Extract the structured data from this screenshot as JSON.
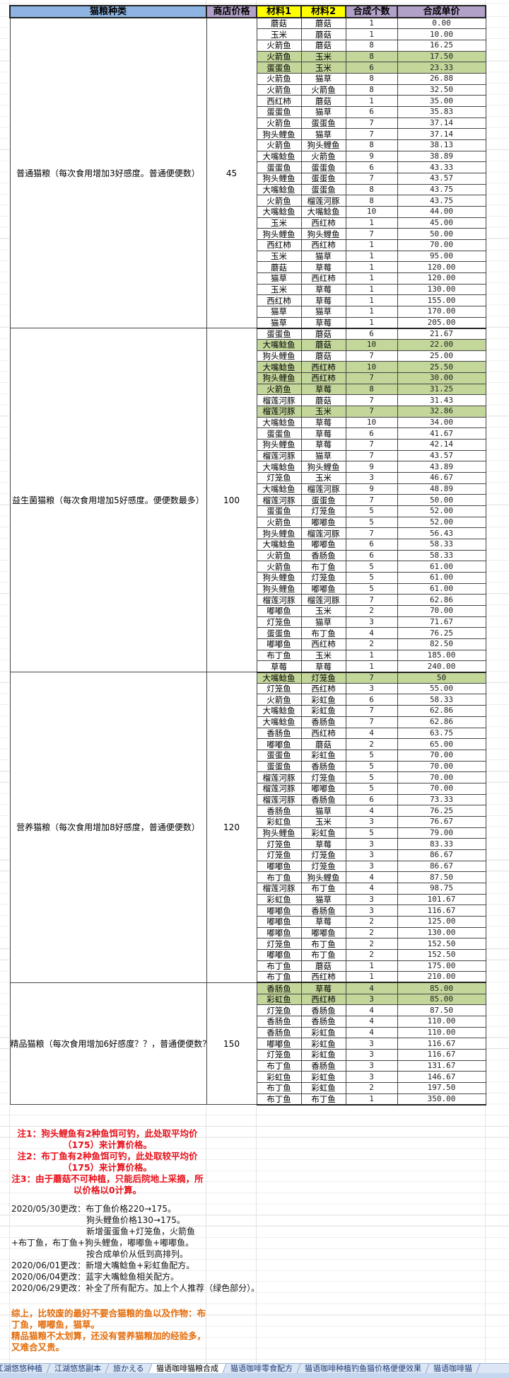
{
  "header": {
    "category": "猫粮种类",
    "shop_price": "商店价格",
    "mat1": "材料1",
    "mat2": "材料2",
    "count": "合成个数",
    "unit_price": "合成单价"
  },
  "colors": {
    "category_header": "#8db4e2",
    "purple_header": "#b1a0c7",
    "material_header": "#ffff00",
    "recommended": "#c4d79b",
    "note_red": "#e8101a",
    "summary_orange": "#e46c0a"
  },
  "sections": [
    {
      "name": "普通猫粮（每次食用增加3好感度。普通便便数）",
      "price": "45",
      "highlighted_rows": [
        3,
        4
      ],
      "rows": [
        [
          "蘑菇",
          "蘑菇",
          "1",
          "0.00"
        ],
        [
          "玉米",
          "蘑菇",
          "1",
          "10.00"
        ],
        [
          "火箭鱼",
          "蘑菇",
          "8",
          "16.25"
        ],
        [
          "火箭鱼",
          "玉米",
          "8",
          "17.50"
        ],
        [
          "蛋蛋鱼",
          "玉米",
          "6",
          "23.33"
        ],
        [
          "火箭鱼",
          "猫草",
          "8",
          "26.88"
        ],
        [
          "火箭鱼",
          "火箭鱼",
          "8",
          "32.50"
        ],
        [
          "西红柿",
          "蘑菇",
          "1",
          "35.00"
        ],
        [
          "蛋蛋鱼",
          "猫草",
          "6",
          "35.83"
        ],
        [
          "火箭鱼",
          "蛋蛋鱼",
          "7",
          "37.14"
        ],
        [
          "狗头鲤鱼",
          "猫草",
          "7",
          "37.14"
        ],
        [
          "火箭鱼",
          "狗头鲤鱼",
          "8",
          "38.13"
        ],
        [
          "大嘴鲶鱼",
          "火箭鱼",
          "9",
          "38.89"
        ],
        [
          "蛋蛋鱼",
          "蛋蛋鱼",
          "6",
          "43.33"
        ],
        [
          "狗头鲤鱼",
          "蛋蛋鱼",
          "7",
          "43.57"
        ],
        [
          "大嘴鲶鱼",
          "蛋蛋鱼",
          "8",
          "43.75"
        ],
        [
          "火箭鱼",
          "榴莲河豚",
          "8",
          "43.75"
        ],
        [
          "大嘴鲶鱼",
          "大嘴鲶鱼",
          "10",
          "44.00"
        ],
        [
          "玉米",
          "西红柿",
          "1",
          "45.00"
        ],
        [
          "狗头鲤鱼",
          "狗头鲤鱼",
          "7",
          "50.00"
        ],
        [
          "西红柿",
          "西红柿",
          "1",
          "70.00"
        ],
        [
          "玉米",
          "猫草",
          "1",
          "95.00"
        ],
        [
          "蘑菇",
          "草莓",
          "1",
          "120.00"
        ],
        [
          "猫草",
          "西红柿",
          "1",
          "120.00"
        ],
        [
          "玉米",
          "草莓",
          "1",
          "130.00"
        ],
        [
          "西红柿",
          "草莓",
          "1",
          "155.00"
        ],
        [
          "猫草",
          "猫草",
          "1",
          "170.00"
        ],
        [
          "猫草",
          "草莓",
          "1",
          "205.00"
        ]
      ]
    },
    {
      "name": "益生菌猫粮（每次食用增加5好感度。便便数最多）",
      "price": "100",
      "highlighted_rows": [
        1,
        3,
        4,
        5,
        7
      ],
      "rows": [
        [
          "蛋蛋鱼",
          "蘑菇",
          "6",
          "21.67"
        ],
        [
          "大嘴鲶鱼",
          "蘑菇",
          "10",
          "22.00"
        ],
        [
          "狗头鲤鱼",
          "蘑菇",
          "7",
          "25.00"
        ],
        [
          "大嘴鲶鱼",
          "西红柿",
          "10",
          "25.50"
        ],
        [
          "狗头鲤鱼",
          "西红柿",
          "7",
          "30.00"
        ],
        [
          "火箭鱼",
          "草莓",
          "8",
          "31.25"
        ],
        [
          "榴莲河豚",
          "蘑菇",
          "7",
          "31.43"
        ],
        [
          "榴莲河豚",
          "玉米",
          "7",
          "32.86"
        ],
        [
          "大嘴鲶鱼",
          "草莓",
          "10",
          "34.00"
        ],
        [
          "蛋蛋鱼",
          "草莓",
          "6",
          "41.67"
        ],
        [
          "狗头鲤鱼",
          "草莓",
          "7",
          "42.14"
        ],
        [
          "榴莲河豚",
          "猫草",
          "7",
          "43.57"
        ],
        [
          "大嘴鲶鱼",
          "狗头鲤鱼",
          "9",
          "43.89"
        ],
        [
          "灯笼鱼",
          "玉米",
          "3",
          "46.67"
        ],
        [
          "大嘴鲶鱼",
          "榴莲河豚",
          "9",
          "48.89"
        ],
        [
          "榴莲河豚",
          "蛋蛋鱼",
          "7",
          "50.00"
        ],
        [
          "蛋蛋鱼",
          "灯笼鱼",
          "5",
          "52.00"
        ],
        [
          "火箭鱼",
          "嘟嘟鱼",
          "5",
          "52.00"
        ],
        [
          "狗头鲤鱼",
          "榴莲河豚",
          "7",
          "56.43"
        ],
        [
          "大嘴鲶鱼",
          "嘟嘟鱼",
          "6",
          "58.33"
        ],
        [
          "火箭鱼",
          "香肠鱼",
          "6",
          "58.33"
        ],
        [
          "火箭鱼",
          "布丁鱼",
          "5",
          "61.00"
        ],
        [
          "狗头鲤鱼",
          "灯笼鱼",
          "5",
          "61.00"
        ],
        [
          "狗头鲤鱼",
          "嘟嘟鱼",
          "5",
          "61.00"
        ],
        [
          "榴莲河豚",
          "榴莲河豚",
          "7",
          "62.86"
        ],
        [
          "嘟嘟鱼",
          "玉米",
          "2",
          "70.00"
        ],
        [
          "灯笼鱼",
          "猫草",
          "3",
          "71.67"
        ],
        [
          "蛋蛋鱼",
          "布丁鱼",
          "4",
          "76.25"
        ],
        [
          "嘟嘟鱼",
          "西红柿",
          "2",
          "82.50"
        ],
        [
          "布丁鱼",
          "玉米",
          "1",
          "185.00"
        ],
        [
          "草莓",
          "草莓",
          "1",
          "240.00"
        ]
      ]
    },
    {
      "name": "营养猫粮（每次食用增加8好感度，普通便便数）",
      "price": "120",
      "highlighted_rows": [
        0
      ],
      "rows": [
        [
          "大嘴鲶鱼",
          "灯笼鱼",
          "7",
          "50"
        ],
        [
          "灯笼鱼",
          "西红柿",
          "3",
          "55.00"
        ],
        [
          "火箭鱼",
          "彩虹鱼",
          "6",
          "58.33"
        ],
        [
          "大嘴鲶鱼",
          "彩虹鱼",
          "7",
          "62.86"
        ],
        [
          "大嘴鲶鱼",
          "香肠鱼",
          "7",
          "62.86"
        ],
        [
          "香肠鱼",
          "西红柿",
          "4",
          "63.75"
        ],
        [
          "嘟嘟鱼",
          "蘑菇",
          "2",
          "65.00"
        ],
        [
          "蛋蛋鱼",
          "彩虹鱼",
          "5",
          "70.00"
        ],
        [
          "蛋蛋鱼",
          "香肠鱼",
          "5",
          "70.00"
        ],
        [
          "榴莲河豚",
          "灯笼鱼",
          "5",
          "70.00"
        ],
        [
          "榴莲河豚",
          "嘟嘟鱼",
          "5",
          "70.00"
        ],
        [
          "榴莲河豚",
          "香肠鱼",
          "6",
          "73.33"
        ],
        [
          "香肠鱼",
          "猫草",
          "4",
          "76.25"
        ],
        [
          "彩虹鱼",
          "玉米",
          "3",
          "76.67"
        ],
        [
          "狗头鲤鱼",
          "彩虹鱼",
          "5",
          "79.00"
        ],
        [
          "灯笼鱼",
          "草莓",
          "3",
          "83.33"
        ],
        [
          "灯笼鱼",
          "灯笼鱼",
          "3",
          "86.67"
        ],
        [
          "嘟嘟鱼",
          "灯笼鱼",
          "3",
          "86.67"
        ],
        [
          "布丁鱼",
          "狗头鲤鱼",
          "4",
          "87.50"
        ],
        [
          "榴莲河豚",
          "布丁鱼",
          "4",
          "98.75"
        ],
        [
          "彩虹鱼",
          "猫草",
          "3",
          "101.67"
        ],
        [
          "嘟嘟鱼",
          "香肠鱼",
          "3",
          "116.67"
        ],
        [
          "嘟嘟鱼",
          "草莓",
          "2",
          "125.00"
        ],
        [
          "嘟嘟鱼",
          "嘟嘟鱼",
          "2",
          "130.00"
        ],
        [
          "灯笼鱼",
          "布丁鱼",
          "2",
          "152.50"
        ],
        [
          "嘟嘟鱼",
          "布丁鱼",
          "2",
          "152.50"
        ],
        [
          "布丁鱼",
          "蘑菇",
          "1",
          "175.00"
        ],
        [
          "布丁鱼",
          "西红柿",
          "1",
          "210.00"
        ]
      ]
    },
    {
      "name": "精品猫粮（每次食用增加6好感度？？，普通便便数？？）",
      "price": "150",
      "highlighted_rows": [
        0,
        1
      ],
      "rows": [
        [
          "香肠鱼",
          "草莓",
          "4",
          "85.00"
        ],
        [
          "彩虹鱼",
          "西红柿",
          "3",
          "85.00"
        ],
        [
          "灯笼鱼",
          "香肠鱼",
          "4",
          "87.50"
        ],
        [
          "香肠鱼",
          "香肠鱼",
          "4",
          "110.00"
        ],
        [
          "香肠鱼",
          "彩虹鱼",
          "4",
          "110.00"
        ],
        [
          "嘟嘟鱼",
          "彩虹鱼",
          "3",
          "116.67"
        ],
        [
          "灯笼鱼",
          "彩虹鱼",
          "3",
          "116.67"
        ],
        [
          "布丁鱼",
          "香肠鱼",
          "3",
          "131.67"
        ],
        [
          "彩虹鱼",
          "彩虹鱼",
          "3",
          "146.67"
        ],
        [
          "布丁鱼",
          "彩虹鱼",
          "2",
          "197.50"
        ],
        [
          "布丁鱼",
          "布丁鱼",
          "1",
          "350.00"
        ]
      ]
    }
  ],
  "notes": [
    "注1：狗头鲤鱼有2种鱼饵可钓，此处取平均价（175）来计算价格。",
    "注2：布丁鱼有2种鱼饵可钓，此处取较平均价（175）来计算价格。",
    "注3：由于蘑菇不可种植，只能后院地上采摘，所以价格以0计算。"
  ],
  "changelog": {
    "l1": "2020/05/30更改：布丁鱼价格220→175。",
    "l2": "狗头鲤鱼价格130→175。",
    "l3": "新增蛋蛋鱼+灯笼鱼，火箭鱼",
    "l4": "+布丁鱼，布丁鱼+狗头鲤鱼，嘟嘟鱼+嘟嘟鱼。",
    "l5": "按合成单价从低到高排列。",
    "l6": "2020/06/01更改：新增大嘴鲶鱼+彩虹鱼配方。",
    "l7": "2020/06/04更改：蓝字大嘴鲶鱼相关配方。",
    "l8": "2020/06/29更改：补全了所有配方。加上个人推荐（绿色部分）。"
  },
  "summary": [
    "综上，比较废的最好不要合猫粮的鱼以及作物：布丁鱼，嘟嘟鱼，猫草。",
    "精品猫粮不太划算，还没有营养猫粮加的经验多，又难合又贵。"
  ],
  "sheet_tabs": [
    {
      "label": "江湖悠悠种植",
      "active": false
    },
    {
      "label": "江湖悠悠副本",
      "active": false
    },
    {
      "label": "旅かえる",
      "active": false
    },
    {
      "label": "猫语咖啡猫粮合成",
      "active": true
    },
    {
      "label": "猫语咖啡零食配方",
      "active": false
    },
    {
      "label": "猫语咖啡种植钓鱼猫价格便便效果",
      "active": false
    },
    {
      "label": "猫语咖啡猫",
      "active": false
    }
  ]
}
